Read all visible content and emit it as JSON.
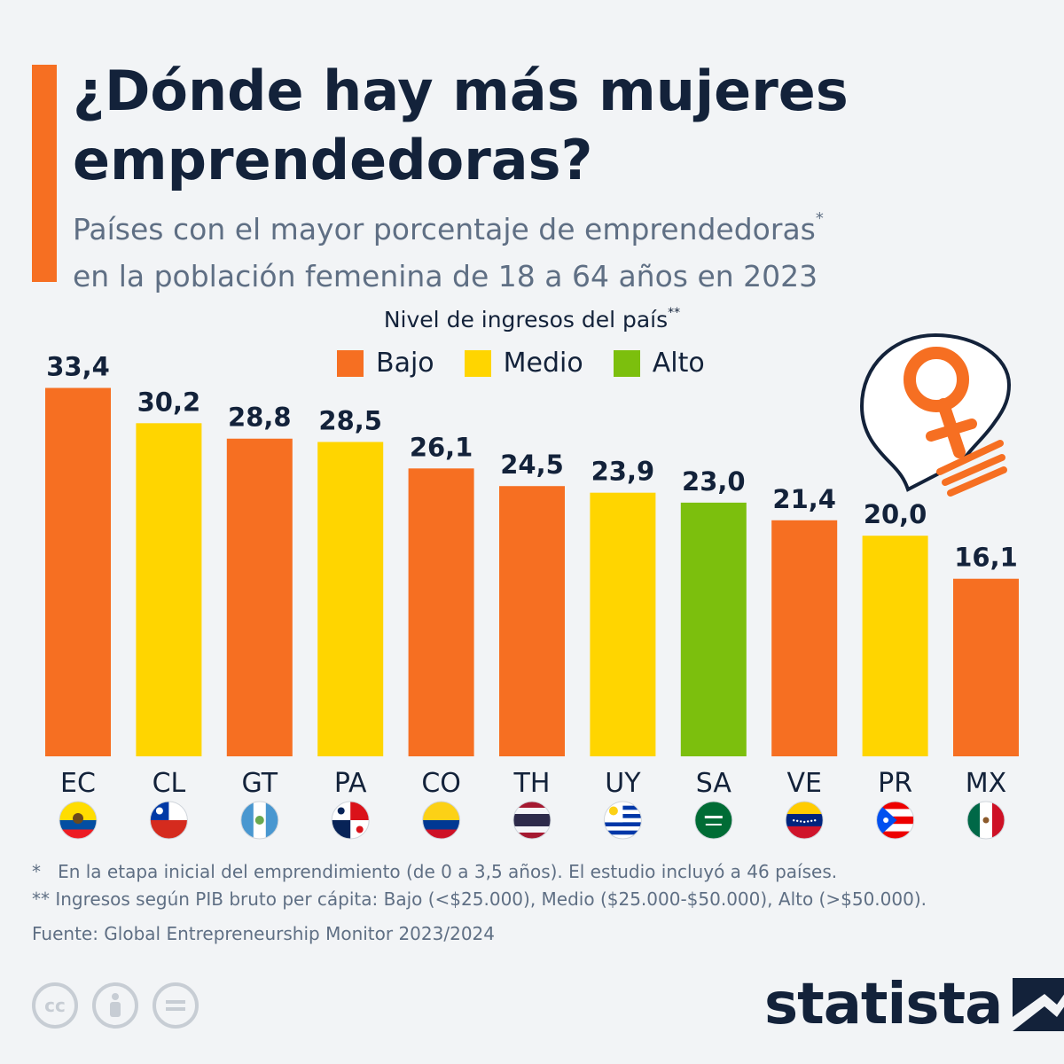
{
  "header": {
    "title": "¿Dónde hay más mujeres emprendedoras?",
    "subtitle_line1": "Países con el mayor porcentaje de emprendedoras",
    "subtitle_line2": "en la población femenina de 18 a 64 años en 2023",
    "subtitle_mark": "*"
  },
  "legend": {
    "title": "Nivel de ingresos del país",
    "title_mark": "**",
    "items": [
      {
        "label": "Bajo",
        "color": "#f66f22"
      },
      {
        "label": "Medio",
        "color": "#ffd500"
      },
      {
        "label": "Alto",
        "color": "#7cbf0d"
      }
    ]
  },
  "chart_data": {
    "type": "bar",
    "title": "¿Dónde hay más mujeres emprendedoras?",
    "ylabel": "",
    "xlabel": "",
    "ylim": [
      0,
      34
    ],
    "categories": [
      "EC",
      "CL",
      "GT",
      "PA",
      "CO",
      "TH",
      "UY",
      "SA",
      "VE",
      "PR",
      "MX"
    ],
    "values": [
      33.4,
      30.2,
      28.8,
      28.5,
      26.1,
      24.5,
      23.9,
      23.0,
      21.4,
      20.0,
      16.1
    ],
    "value_labels": [
      "33,4",
      "30,2",
      "28,8",
      "28,5",
      "26,1",
      "24,5",
      "23,9",
      "23,0",
      "21,4",
      "20,0",
      "16,1"
    ],
    "income_level": [
      "Bajo",
      "Medio",
      "Bajo",
      "Medio",
      "Bajo",
      "Bajo",
      "Medio",
      "Alto",
      "Bajo",
      "Medio",
      "Bajo"
    ],
    "colors": {
      "Bajo": "#f66f22",
      "Medio": "#ffd500",
      "Alto": "#7cbf0d"
    },
    "flags": [
      {
        "code": "EC",
        "icon": "ecuador-flag-icon"
      },
      {
        "code": "CL",
        "icon": "chile-flag-icon"
      },
      {
        "code": "GT",
        "icon": "guatemala-flag-icon"
      },
      {
        "code": "PA",
        "icon": "panama-flag-icon"
      },
      {
        "code": "CO",
        "icon": "colombia-flag-icon"
      },
      {
        "code": "TH",
        "icon": "thailand-flag-icon"
      },
      {
        "code": "UY",
        "icon": "uruguay-flag-icon"
      },
      {
        "code": "SA",
        "icon": "saudi-arabia-flag-icon"
      },
      {
        "code": "VE",
        "icon": "venezuela-flag-icon"
      },
      {
        "code": "PR",
        "icon": "puerto-rico-flag-icon"
      },
      {
        "code": "MX",
        "icon": "mexico-flag-icon"
      }
    ]
  },
  "footnotes": {
    "note1_mark": "*",
    "note1": "En la etapa inicial del emprendimiento (de 0 a 3,5 años). El estudio incluyó a 46 países.",
    "note2_mark": "**",
    "note2": "Ingresos según PIB bruto per cápita: Bajo (<$25.000), Medio ($25.000-$50.000), Alto (>$50.000).",
    "source": "Fuente: Global Entrepreneurship Monitor 2023/2024"
  },
  "brand": {
    "name": "statista"
  },
  "license_icons": [
    "cc-icon",
    "attribution-icon",
    "no-derivatives-icon"
  ]
}
